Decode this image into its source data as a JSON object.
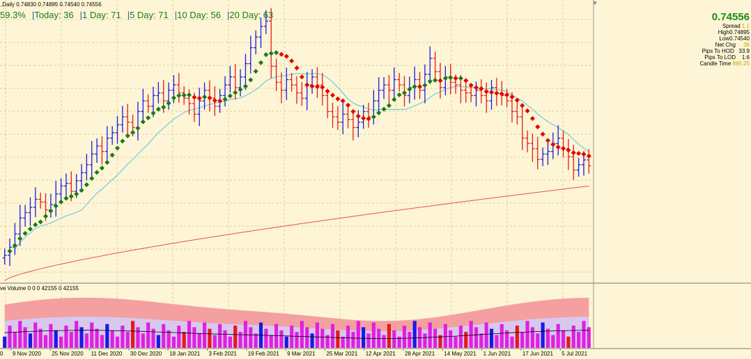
{
  "header": {
    "ohlc_text": ",Daily  0.74830 0.74895 0.74540 0.74556",
    "scroll_arrow": "▼"
  },
  "stats": {
    "pct": "59.3%",
    "today": "Today: 36",
    "day1": "1 Day: 71",
    "day5": "5 Day: 71",
    "day10": "10 Day: 56",
    "day20": "20 Day: 63",
    "separator": "|"
  },
  "info_panel": {
    "price": "0.74556",
    "rows": [
      {
        "label": "Spread",
        "value": "1.1"
      },
      {
        "label": "High",
        "value": "0.74895"
      },
      {
        "label": "Low",
        "value": "0.74540"
      },
      {
        "label": "Net Chg",
        "value": "36"
      },
      {
        "label": "Pips To HOD",
        "value": "33.9"
      },
      {
        "label": "Pips To LOD",
        "value": "1.6"
      },
      {
        "label": "Candle Time",
        "value": "885:25"
      }
    ]
  },
  "volume_indicator": {
    "label": "ve Volume 0 0 0 42155 0 42155"
  },
  "colors": {
    "background": "#fdf5d5",
    "grid": "#d9cfa0",
    "bull_bar": "#1a1ae6",
    "bear_bar": "#e61a1a",
    "ma_up": "#1a7a1a",
    "ma_down": "#e60000",
    "ma_slow": "#5fc0e0",
    "ma_long": "#e85050",
    "vol_band_outer": "#f4a0a0",
    "vol_band_inner": "#d8c8f0",
    "vol_bull": "#1a1ae6",
    "vol_bear": "#e61a1a",
    "vol_neutral": "#e020e0"
  },
  "chart_data": {
    "type": "line",
    "title": "",
    "x_axis_labels": [
      "9 Nov 2020",
      "25 Nov 2020",
      "11 Dec 2020",
      "30 Dec 2020",
      "18 Jan 2021",
      "3 Feb 2021",
      "19 Feb 2021",
      "9 Mar 2021",
      "25 Mar 2021",
      "12 Apr 2021",
      "28 Apr 2021",
      "14 May 2021",
      "1 Jun 2021",
      "17 Jun 2021",
      "5 Jul 2021"
    ],
    "x_axis_first_label_partial": "0",
    "series": [
      {
        "kind": "ohlc_bars",
        "closes": [
          0.712,
          0.715,
          0.72,
          0.726,
          0.728,
          0.73,
          0.733,
          0.732,
          0.729,
          0.731,
          0.735,
          0.738,
          0.739,
          0.736,
          0.74,
          0.743,
          0.746,
          0.75,
          0.753,
          0.751,
          0.756,
          0.758,
          0.761,
          0.764,
          0.762,
          0.76,
          0.766,
          0.77,
          0.768,
          0.772,
          0.773,
          0.77,
          0.774,
          0.776,
          0.773,
          0.771,
          0.769,
          0.765,
          0.77,
          0.774,
          0.771,
          0.768,
          0.772,
          0.776,
          0.779,
          0.775,
          0.779,
          0.784,
          0.79,
          0.794,
          0.798,
          0.8,
          0.783,
          0.777,
          0.774,
          0.778,
          0.776,
          0.773,
          0.771,
          0.776,
          0.779,
          0.776,
          0.772,
          0.766,
          0.764,
          0.762,
          0.765,
          0.763,
          0.76,
          0.762,
          0.766,
          0.764,
          0.77,
          0.774,
          0.776,
          0.774,
          0.778,
          0.776,
          0.772,
          0.775,
          0.778,
          0.774,
          0.78,
          0.786,
          0.781,
          0.775,
          0.779,
          0.777,
          0.776,
          0.774,
          0.773,
          0.772,
          0.774,
          0.772,
          0.77,
          0.775,
          0.773,
          0.772,
          0.77,
          0.766,
          0.764,
          0.756,
          0.754,
          0.752,
          0.748,
          0.75,
          0.751,
          0.754,
          0.756,
          0.752,
          0.749,
          0.744,
          0.746,
          0.7478,
          0.7456
        ]
      },
      {
        "name": "",
        "kind": "colored_ma",
        "note_colors": "green-up-red-down"
      },
      {
        "name": "",
        "kind": "slow_ma"
      },
      {
        "name": "",
        "kind": "long_ma"
      }
    ],
    "volume": {
      "label": "ve Volume 0 0 0 42155 0 42155",
      "last_value": 42155
    },
    "grid": true,
    "legend": "none"
  }
}
